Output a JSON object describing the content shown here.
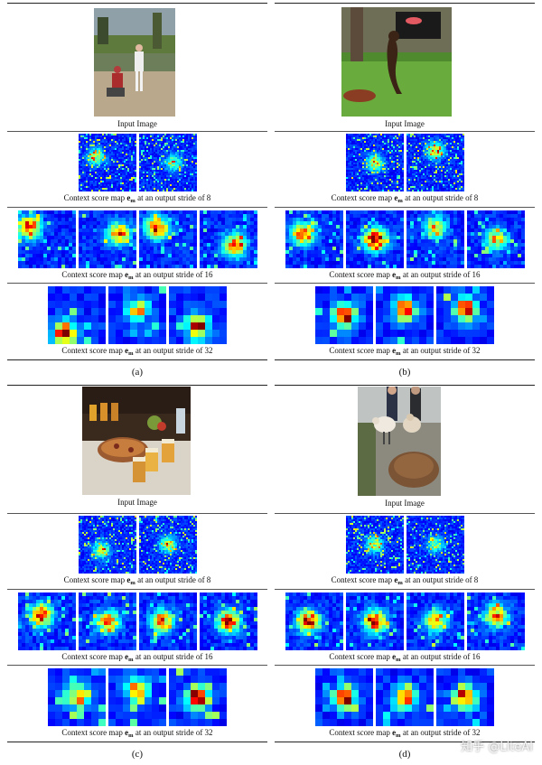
{
  "input_caption": "Input Image",
  "stride_caption": {
    "prefix": "Context score map ",
    "symbol": "e",
    "subscript": "m",
    "suffix": " at an output stride of "
  },
  "panels": [
    {
      "label": "(a)",
      "strides": [
        "8",
        "16",
        "32"
      ],
      "photo": "baseball-scene",
      "peaks": [
        [
          [
            0.3,
            0.4,
            0.5
          ],
          [
            0.6,
            0.5,
            0.4
          ]
        ],
        [
          [
            0.2,
            0.3,
            0.9
          ],
          [
            0.7,
            0.4,
            0.8
          ],
          [
            0.3,
            0.3,
            0.9
          ],
          [
            0.6,
            0.6,
            0.8
          ]
        ],
        [
          [
            0.3,
            0.8,
            1.0
          ],
          [
            0.5,
            0.4,
            0.7
          ],
          [
            0.5,
            0.7,
            1.0
          ]
        ]
      ]
    },
    {
      "label": "(b)",
      "strides": [
        "8",
        "16",
        "32"
      ],
      "photo": "dog-frisbee",
      "peaks": [
        [
          [
            0.5,
            0.5,
            0.5
          ],
          [
            0.5,
            0.3,
            0.6
          ]
        ],
        [
          [
            0.3,
            0.4,
            0.8
          ],
          [
            0.5,
            0.5,
            1.0
          ],
          [
            0.5,
            0.3,
            0.6
          ],
          [
            0.5,
            0.5,
            0.6
          ]
        ],
        [
          [
            0.5,
            0.5,
            1.0
          ],
          [
            0.5,
            0.4,
            0.9
          ],
          [
            0.5,
            0.4,
            1.0
          ]
        ]
      ]
    },
    {
      "label": "(c)",
      "strides": [
        "8",
        "16",
        "32"
      ],
      "photo": "beer-pizza",
      "peaks": [
        [
          [
            0.4,
            0.6,
            0.5
          ],
          [
            0.5,
            0.5,
            0.5
          ]
        ],
        [
          [
            0.4,
            0.4,
            0.9
          ],
          [
            0.5,
            0.5,
            0.8
          ],
          [
            0.4,
            0.5,
            0.8
          ],
          [
            0.5,
            0.5,
            0.9
          ]
        ],
        [
          [
            0.5,
            0.5,
            0.8
          ],
          [
            0.5,
            0.4,
            0.9
          ],
          [
            0.5,
            0.5,
            1.0
          ]
        ]
      ]
    },
    {
      "label": "(d)",
      "strides": [
        "8",
        "16",
        "32"
      ],
      "photo": "sheep-people",
      "peaks": [
        [
          [
            0.5,
            0.5,
            0.5
          ],
          [
            0.5,
            0.5,
            0.4
          ]
        ],
        [
          [
            0.4,
            0.5,
            0.9
          ],
          [
            0.5,
            0.5,
            0.9
          ],
          [
            0.5,
            0.5,
            0.7
          ],
          [
            0.5,
            0.4,
            0.8
          ]
        ],
        [
          [
            0.5,
            0.5,
            1.0
          ],
          [
            0.5,
            0.5,
            0.9
          ],
          [
            0.5,
            0.5,
            1.0
          ]
        ]
      ]
    }
  ],
  "watermark": "知乎 @LiteAI"
}
